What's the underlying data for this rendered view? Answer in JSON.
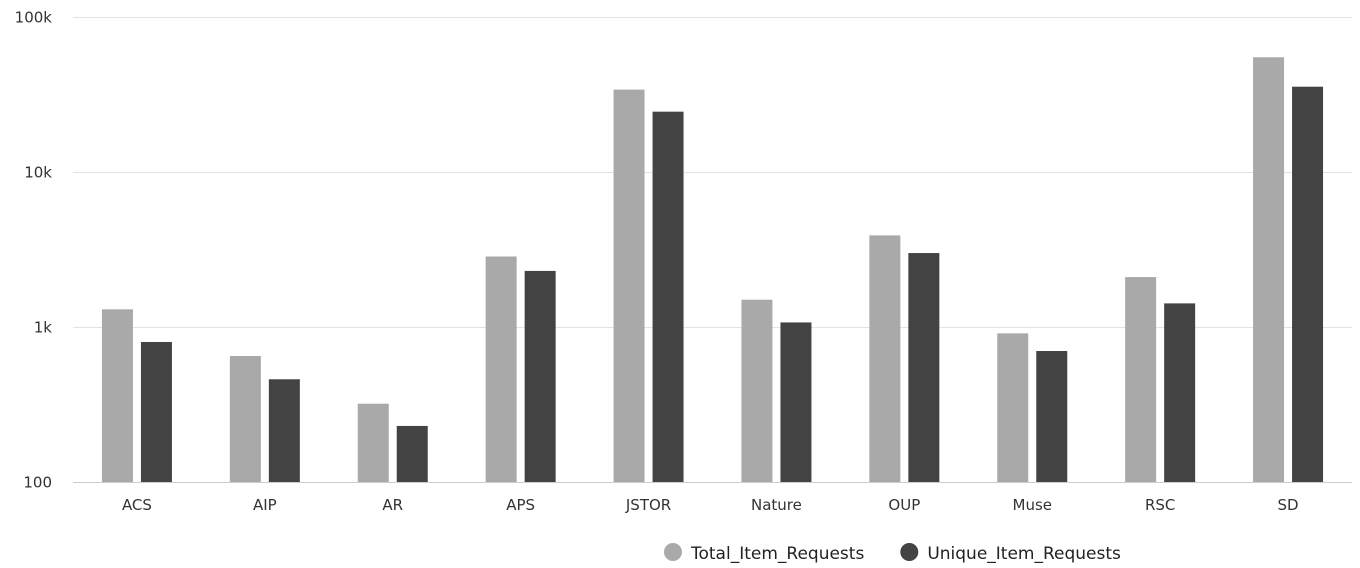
{
  "chart_data": {
    "type": "bar",
    "title": "",
    "xlabel": "",
    "ylabel": "",
    "yscale": "log",
    "ylim": [
      100,
      100000
    ],
    "y_ticks": [
      {
        "value": 100,
        "label": "100"
      },
      {
        "value": 1000,
        "label": "1k"
      },
      {
        "value": 10000,
        "label": "10k"
      },
      {
        "value": 100000,
        "label": "100k"
      }
    ],
    "grid": true,
    "legend_position": "bottom-center",
    "categories": [
      "ACS",
      "AIP",
      "AR",
      "APS",
      "JSTOR",
      "Nature",
      "OUP",
      "Muse",
      "RSC",
      "SD"
    ],
    "series": [
      {
        "name": "Total_Item_Requests",
        "color": "#a9a9a9",
        "values": [
          1300,
          650,
          320,
          2850,
          34000,
          1500,
          3900,
          910,
          2100,
          55000
        ]
      },
      {
        "name": "Unique_Item_Requests",
        "color": "#434343",
        "values": [
          800,
          460,
          230,
          2300,
          24500,
          1070,
          3000,
          700,
          1420,
          35500
        ]
      }
    ]
  }
}
